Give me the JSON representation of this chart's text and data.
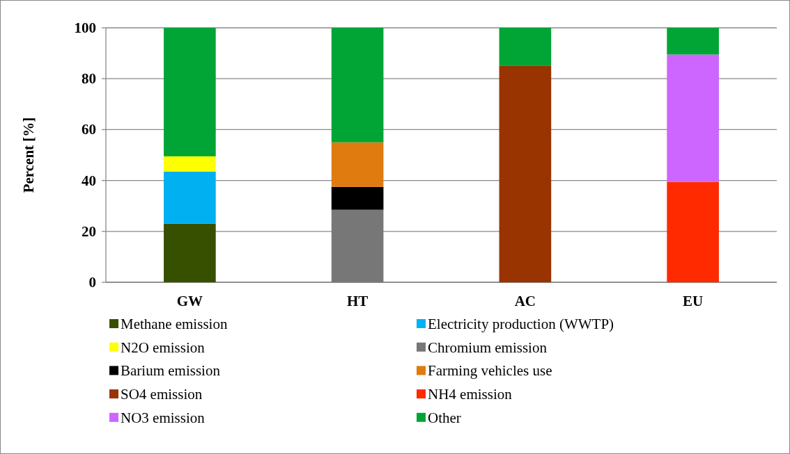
{
  "chart_data": {
    "type": "bar",
    "stacked": true,
    "ylabel": "Percent [%]",
    "categories": [
      "GW",
      "HT",
      "AC",
      "EU"
    ],
    "ylim": [
      0,
      100
    ],
    "yticks": [
      0,
      20,
      40,
      60,
      80,
      100
    ],
    "grid": "y",
    "legend": "bottom",
    "series": [
      {
        "name": "Methane emission",
        "color": "#375000",
        "values": [
          23,
          null,
          null,
          null
        ]
      },
      {
        "name": "Electricity production (WWTP)",
        "color": "#00b0f0",
        "values": [
          20.5,
          null,
          null,
          null
        ]
      },
      {
        "name": "N2O emission",
        "color": "#ffff00",
        "values": [
          6,
          null,
          null,
          null
        ]
      },
      {
        "name": "Chromium emission",
        "color": "#777777",
        "values": [
          null,
          28.5,
          null,
          null
        ]
      },
      {
        "name": "Barium emission",
        "color": "#000000",
        "values": [
          null,
          9,
          null,
          null
        ]
      },
      {
        "name": "Farming vehicles use",
        "color": "#e07b10",
        "values": [
          null,
          17.5,
          null,
          null
        ]
      },
      {
        "name": "SO4 emission",
        "color": "#993300",
        "values": [
          null,
          null,
          85,
          null
        ]
      },
      {
        "name": "NH4 emission",
        "color": "#ff2a00",
        "values": [
          null,
          null,
          null,
          39.5
        ]
      },
      {
        "name": "NO3 emission",
        "color": "#cc66ff",
        "values": [
          null,
          null,
          null,
          50
        ]
      },
      {
        "name": "Other",
        "color": "#00a535",
        "values": [
          50.5,
          45,
          15,
          10.5
        ]
      }
    ]
  }
}
